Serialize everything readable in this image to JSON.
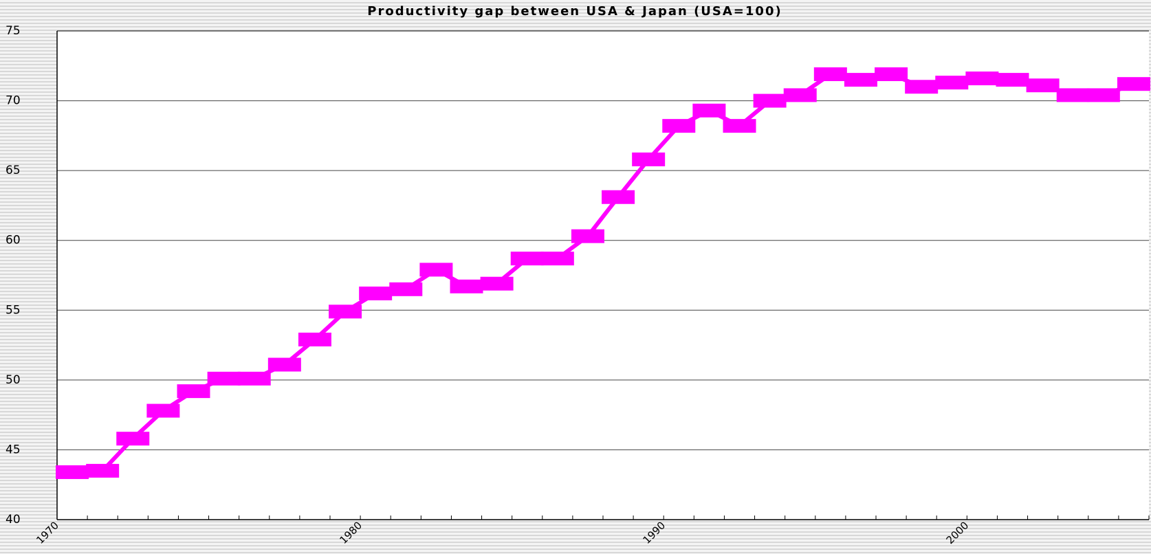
{
  "chart_data": {
    "type": "line",
    "title": "Productivity gap between USA & Japan (USA=100)",
    "categories": [
      "1970",
      null,
      null,
      null,
      null,
      null,
      null,
      null,
      null,
      null,
      "1980",
      null,
      null,
      null,
      null,
      null,
      null,
      null,
      null,
      null,
      "1990",
      null,
      null,
      null,
      null,
      null,
      null,
      null,
      null,
      null,
      "2000",
      null,
      null,
      null,
      null,
      null
    ],
    "series": [
      {
        "color": "#ff00ff",
        "values": [
          43.4,
          43.5,
          45.8,
          47.8,
          49.2,
          50.1,
          50.1,
          51.1,
          52.9,
          54.9,
          56.2,
          56.5,
          57.9,
          56.7,
          56.9,
          58.7,
          58.7,
          60.3,
          63.1,
          65.8,
          68.2,
          69.3,
          68.2,
          70.0,
          70.4,
          71.9,
          71.5,
          71.9,
          71.0,
          71.3,
          71.6,
          71.5,
          71.1,
          70.4,
          70.4,
          71.2
        ]
      }
    ],
    "ylim": [
      40,
      75
    ],
    "yticks": [
      40,
      45,
      50,
      55,
      60,
      65,
      70,
      75
    ],
    "grid": true
  }
}
